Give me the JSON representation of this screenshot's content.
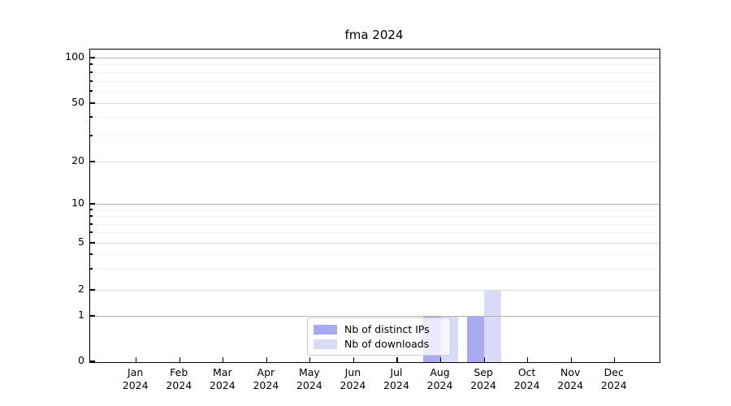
{
  "chart_data": {
    "type": "bar",
    "title": "fma 2024",
    "categories": [
      "Jan",
      "Feb",
      "Mar",
      "Apr",
      "May",
      "Jun",
      "Jul",
      "Aug",
      "Sep",
      "Oct",
      "Nov",
      "Dec"
    ],
    "year_label": "2024",
    "series": [
      {
        "name": "Nb of distinct IPs",
        "color": "#a8aaf3",
        "values": [
          0,
          0,
          0,
          0,
          0,
          0,
          0,
          1,
          1,
          0,
          0,
          0
        ]
      },
      {
        "name": "Nb of downloads",
        "color": "#d8daf8",
        "values": [
          0,
          0,
          0,
          0,
          0,
          0,
          0,
          1,
          2,
          0,
          0,
          0
        ]
      }
    ],
    "y_axis": {
      "scale": "symlog",
      "labeled_ticks": [
        0,
        1,
        2,
        5,
        10,
        20,
        50,
        100
      ],
      "decade_ticks": [
        1,
        10,
        100
      ],
      "minor_ticks": [
        3,
        4,
        6,
        7,
        8,
        9,
        30,
        40,
        60,
        70,
        80,
        90
      ],
      "ylim": [
        0,
        110
      ]
    },
    "legend": {
      "position": "lower center",
      "entries": [
        "Nb of distinct IPs",
        "Nb of downloads"
      ]
    },
    "grid": "on"
  },
  "colors": {
    "grid_decade": "#b3b3b3",
    "grid_labeled": "#dadada",
    "grid_minor": "#f1f1f1",
    "spine": "#000000",
    "text": "#000000",
    "legend_border": "#cccccc"
  }
}
